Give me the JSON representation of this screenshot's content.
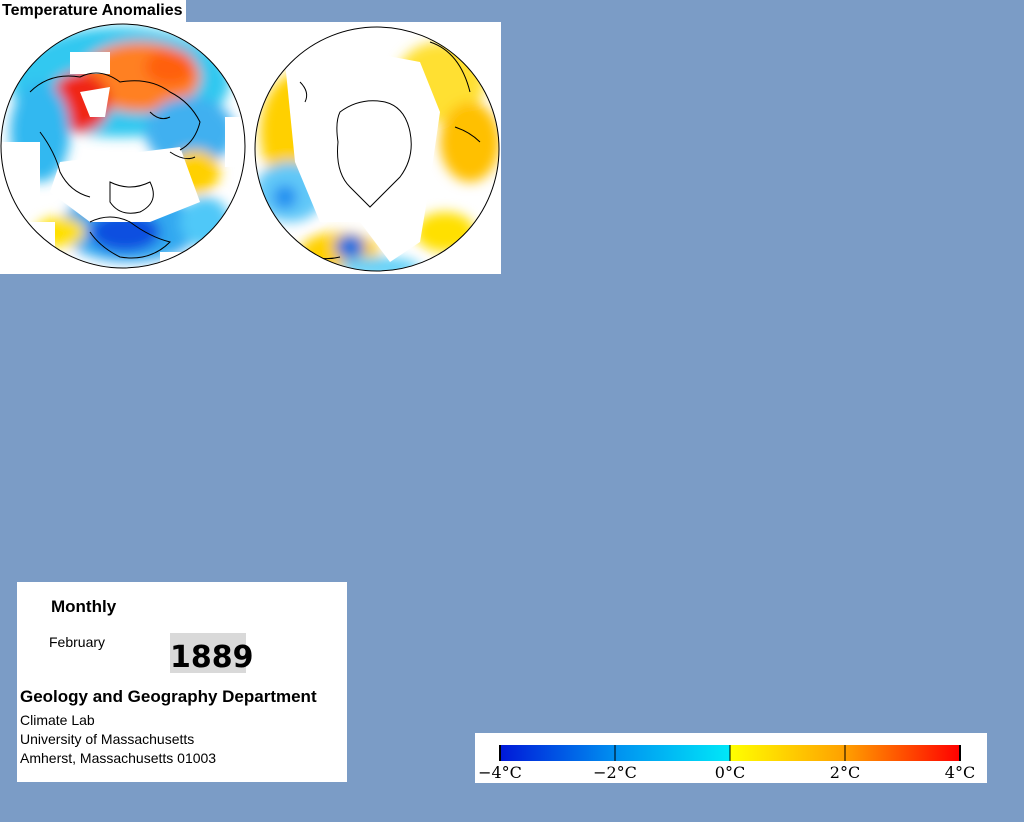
{
  "header": {
    "title": "Temperature Anomalies"
  },
  "maps": [
    {
      "name": "northern-hemisphere",
      "projection": "polar"
    },
    {
      "name": "southern-hemisphere",
      "projection": "polar"
    }
  ],
  "info": {
    "mode": "Monthly",
    "month": "February",
    "year": "1889",
    "department": "Geology and Geography Department",
    "lab": "Climate Lab",
    "university": "University of Massachusetts",
    "address": "Amherst, Massachusetts 01003"
  },
  "legend": {
    "min": -4,
    "max": 4,
    "unit": "°C",
    "ticks": [
      "−4°C",
      "−2°C",
      "0°C",
      "2°C",
      "4°C"
    ],
    "tick_values": [
      -4,
      -2,
      0,
      2,
      4
    ],
    "colors": [
      "#0018d8",
      "#0090f0",
      "#00e8f8",
      "#ffff00",
      "#ffa000",
      "#ff0000"
    ]
  }
}
